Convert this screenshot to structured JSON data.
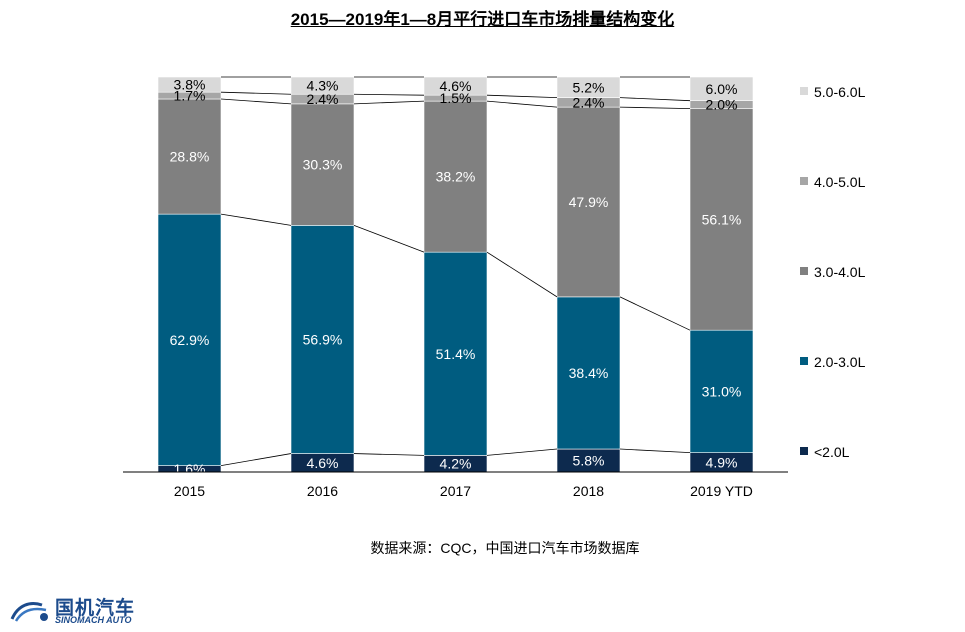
{
  "chart_data": {
    "type": "bar",
    "stacked": true,
    "percent_stacked": true,
    "title": "2015—2019年1—8月平行进口车市场排量结构变化",
    "categories": [
      "2015",
      "2016",
      "2017",
      "2018",
      "2019 YTD"
    ],
    "series": [
      {
        "name": "<2.0L",
        "color": "#0d2a4e",
        "values": [
          1.6,
          4.6,
          4.2,
          5.8,
          4.9
        ]
      },
      {
        "name": "2.0-3.0L",
        "color": "#005c80",
        "values": [
          62.9,
          56.9,
          51.4,
          38.4,
          31.0
        ]
      },
      {
        "name": "3.0-4.0L",
        "color": "#808080",
        "values": [
          28.8,
          30.3,
          38.2,
          47.9,
          56.1
        ]
      },
      {
        "name": "4.0-5.0L",
        "color": "#a6a6a6",
        "values": [
          1.7,
          2.4,
          1.5,
          2.4,
          2.0
        ]
      },
      {
        "name": "5.0-6.0L",
        "color": "#d9d9d9",
        "values": [
          3.8,
          4.3,
          4.6,
          5.2,
          6.0
        ]
      }
    ],
    "series_lines": true,
    "legend_position": "right",
    "grid": false
  },
  "source_note": "数据来源：CQC，中国进口汽车市场数据库",
  "logo": {
    "name": "国机汽车",
    "sub": "SINOMACH AUTO"
  }
}
